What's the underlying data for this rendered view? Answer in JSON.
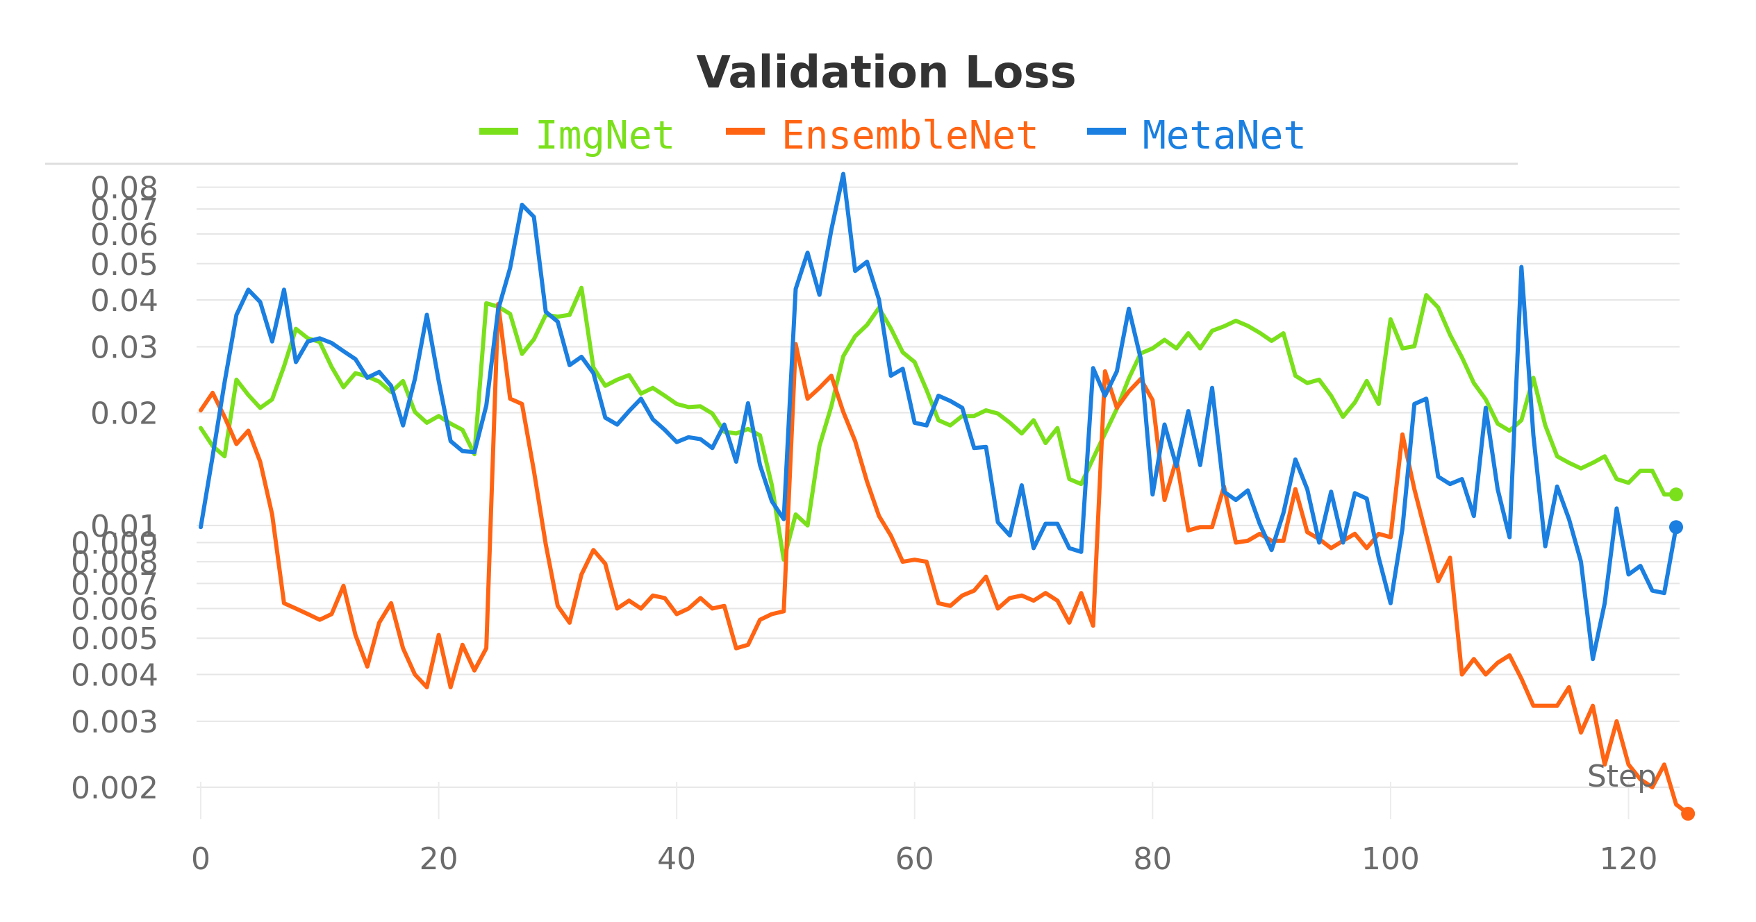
{
  "chart_data": {
    "type": "line",
    "title": "Validation Loss",
    "xlabel": "Step",
    "ylabel": "",
    "yscale": "log",
    "xlim": [
      0,
      124
    ],
    "ylim": [
      0.0017,
      0.087
    ],
    "x_ticks": [
      0,
      20,
      40,
      60,
      80,
      100,
      120
    ],
    "y_ticks": [
      0.002,
      0.003,
      0.004,
      0.005,
      0.006,
      0.007,
      0.008,
      0.009,
      0.01,
      0.02,
      0.03,
      0.04,
      0.05,
      0.06,
      0.07,
      0.08
    ],
    "y_tick_labels": [
      "0.002",
      "0.003",
      "0.004",
      "0.005",
      "0.006",
      "0.007",
      "0.008",
      "0.009",
      "0.01",
      "0.02",
      "0.03",
      "0.04",
      "0.05",
      "0.06",
      "0.07",
      "0.08"
    ],
    "x_tick_labels": [
      "0",
      "20",
      "40",
      "60",
      "80",
      "100",
      "120"
    ],
    "legend_position": "top-center",
    "grid": true,
    "series": [
      {
        "name": "ImgNet",
        "color": "#7be01c",
        "values": [
          0.0182,
          0.0163,
          0.0153,
          0.0245,
          0.0223,
          0.0206,
          0.0217,
          0.0266,
          0.0335,
          0.0316,
          0.0309,
          0.0265,
          0.0234,
          0.0255,
          0.025,
          0.0242,
          0.0227,
          0.0243,
          0.0201,
          0.0188,
          0.0196,
          0.0187,
          0.018,
          0.0155,
          0.0392,
          0.0384,
          0.0367,
          0.0287,
          0.0314,
          0.0365,
          0.0361,
          0.0365,
          0.0431,
          0.0264,
          0.0236,
          0.0245,
          0.0252,
          0.0225,
          0.0233,
          0.0222,
          0.0211,
          0.0207,
          0.0208,
          0.0199,
          0.0178,
          0.0176,
          0.0181,
          0.0174,
          0.0128,
          0.0081,
          0.0107,
          0.01,
          0.0163,
          0.0208,
          0.0283,
          0.032,
          0.0343,
          0.0381,
          0.0336,
          0.029,
          0.0273,
          0.023,
          0.0191,
          0.0185,
          0.0196,
          0.0196,
          0.0203,
          0.0199,
          0.0188,
          0.0176,
          0.0191,
          0.0166,
          0.0182,
          0.0133,
          0.0129,
          0.0151,
          0.0176,
          0.0205,
          0.0247,
          0.0288,
          0.0297,
          0.0313,
          0.0297,
          0.0326,
          0.0297,
          0.0331,
          0.034,
          0.0352,
          0.0341,
          0.0327,
          0.0311,
          0.0326,
          0.0251,
          0.024,
          0.0245,
          0.0222,
          0.0195,
          0.0213,
          0.0243,
          0.0211,
          0.0355,
          0.0297,
          0.0301,
          0.0412,
          0.0382,
          0.0323,
          0.0281,
          0.024,
          0.0217,
          0.0187,
          0.0179,
          0.0191,
          0.0248,
          0.0185,
          0.0153,
          0.0147,
          0.0142,
          0.0147,
          0.0153,
          0.0133,
          0.013,
          0.014,
          0.014,
          0.0121,
          0.0121
        ]
      },
      {
        "name": "EnsembleNet",
        "color": "#ff6413",
        "values": [
          0.0203,
          0.0226,
          0.0195,
          0.0165,
          0.0179,
          0.0148,
          0.0107,
          0.0062,
          0.006,
          0.0058,
          0.0056,
          0.0058,
          0.0069,
          0.0051,
          0.0042,
          0.0055,
          0.0062,
          0.0047,
          0.004,
          0.0037,
          0.0051,
          0.0037,
          0.0048,
          0.0041,
          0.0047,
          0.039,
          0.0218,
          0.0211,
          0.014,
          0.0089,
          0.0061,
          0.0055,
          0.0074,
          0.0086,
          0.0079,
          0.006,
          0.0063,
          0.006,
          0.0065,
          0.0064,
          0.0058,
          0.006,
          0.0064,
          0.006,
          0.0061,
          0.0047,
          0.0048,
          0.0056,
          0.0058,
          0.0059,
          0.0305,
          0.0218,
          0.0233,
          0.0251,
          0.0201,
          0.0168,
          0.0131,
          0.0106,
          0.0094,
          0.008,
          0.0081,
          0.008,
          0.0062,
          0.0061,
          0.0065,
          0.0067,
          0.0073,
          0.006,
          0.0064,
          0.0065,
          0.0063,
          0.0066,
          0.0063,
          0.0055,
          0.0066,
          0.0054,
          0.0258,
          0.0206,
          0.0228,
          0.0246,
          0.0216,
          0.0117,
          0.015,
          0.0097,
          0.0099,
          0.0099,
          0.0127,
          0.009,
          0.0091,
          0.0095,
          0.0091,
          0.0091,
          0.0125,
          0.0096,
          0.0092,
          0.0087,
          0.0091,
          0.0095,
          0.0087,
          0.0095,
          0.0093,
          0.0175,
          0.0125,
          0.0094,
          0.0071,
          0.0082,
          0.004,
          0.0044,
          0.004,
          0.0043,
          0.0045,
          0.0039,
          0.0033,
          0.0033,
          0.0033,
          0.0037,
          0.0028,
          0.0033,
          0.0023,
          0.003,
          0.0023,
          0.0021,
          0.002,
          0.0023,
          0.0018,
          0.0017
        ]
      },
      {
        "name": "MetaNet",
        "color": "#1a7fe0",
        "values": [
          0.0099,
          0.0153,
          0.0241,
          0.0365,
          0.0426,
          0.0395,
          0.031,
          0.0426,
          0.0273,
          0.031,
          0.0316,
          0.0307,
          0.0292,
          0.0278,
          0.0248,
          0.0257,
          0.0236,
          0.0185,
          0.0246,
          0.0365,
          0.0243,
          0.0168,
          0.0158,
          0.0157,
          0.0209,
          0.0377,
          0.0487,
          0.0718,
          0.0667,
          0.0372,
          0.035,
          0.0268,
          0.0282,
          0.0255,
          0.0194,
          0.0186,
          0.0202,
          0.0218,
          0.0192,
          0.018,
          0.0167,
          0.0172,
          0.017,
          0.0161,
          0.0186,
          0.0148,
          0.0212,
          0.0145,
          0.0116,
          0.0104,
          0.0428,
          0.0535,
          0.0413,
          0.0615,
          0.0868,
          0.0478,
          0.0506,
          0.0401,
          0.0251,
          0.0262,
          0.0188,
          0.0185,
          0.0222,
          0.0215,
          0.0206,
          0.0161,
          0.0162,
          0.0102,
          0.0094,
          0.0128,
          0.0087,
          0.0101,
          0.0101,
          0.0087,
          0.0085,
          0.0263,
          0.0222,
          0.0258,
          0.0379,
          0.0279,
          0.0121,
          0.0186,
          0.0144,
          0.0202,
          0.0145,
          0.0233,
          0.0123,
          0.0117,
          0.0124,
          0.0101,
          0.0086,
          0.0108,
          0.015,
          0.0125,
          0.009,
          0.0123,
          0.009,
          0.0122,
          0.0118,
          0.0082,
          0.0062,
          0.0098,
          0.0211,
          0.0218,
          0.0135,
          0.0129,
          0.0133,
          0.0106,
          0.0206,
          0.0125,
          0.0093,
          0.049,
          0.0174,
          0.0088,
          0.0127,
          0.0104,
          0.008,
          0.0044,
          0.0062,
          0.0111,
          0.0074,
          0.0078,
          0.0067,
          0.0066,
          0.0099
        ]
      }
    ]
  }
}
